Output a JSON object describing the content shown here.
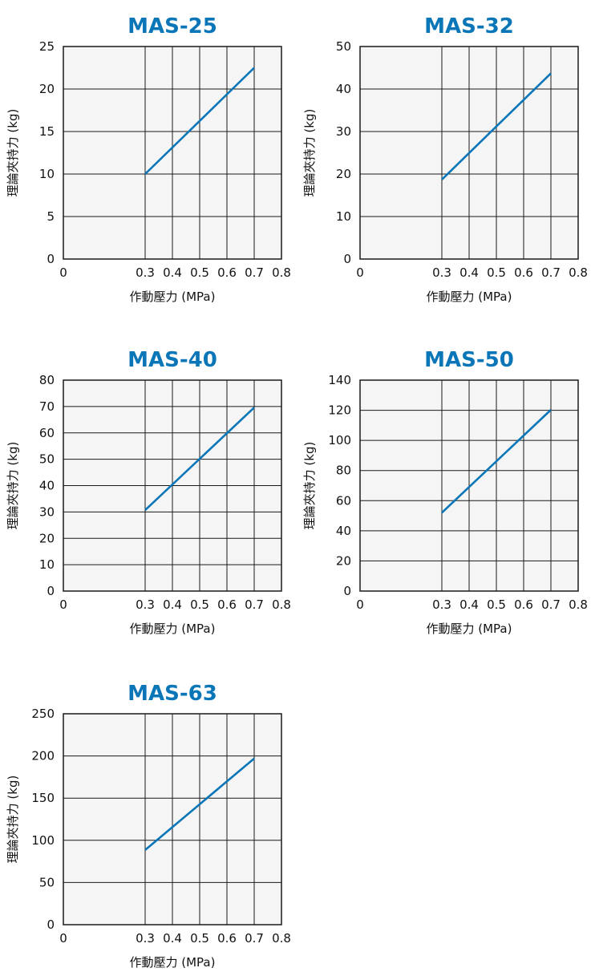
{
  "colors": {
    "line": "#0a76b8",
    "title": "#0a76b8",
    "plot_bg": "#f5f5f5",
    "grid": "#1a1a1a"
  },
  "chart_data": [
    {
      "type": "line",
      "title": "MAS-25",
      "xlabel": "作動壓力 (MPa)",
      "ylabel": "理論夾持力 (kg)",
      "xlim": [
        0,
        0.8
      ],
      "ylim": [
        0,
        25
      ],
      "xticks": [
        "0",
        "0.3",
        "0.4",
        "0.5",
        "0.6",
        "0.7",
        "0.8"
      ],
      "yticks": [
        "0",
        "5",
        "10",
        "15",
        "20",
        "25"
      ],
      "grid": true,
      "series": [
        {
          "x": [
            0.3,
            0.7
          ],
          "y": [
            10,
            22.5
          ]
        }
      ]
    },
    {
      "type": "line",
      "title": "MAS-32",
      "xlabel": "作動壓力 (MPa)",
      "ylabel": "理論夾持力 (kg)",
      "xlim": [
        0,
        0.8
      ],
      "ylim": [
        0,
        50
      ],
      "xticks": [
        "0",
        "0.3",
        "0.4",
        "0.5",
        "0.6",
        "0.7",
        "0.8"
      ],
      "yticks": [
        "0",
        "10",
        "20",
        "30",
        "40",
        "50"
      ],
      "grid": true,
      "series": [
        {
          "x": [
            0.3,
            0.7
          ],
          "y": [
            18.7,
            43.7
          ]
        }
      ]
    },
    {
      "type": "line",
      "title": "MAS-40",
      "xlabel": "作動壓力 (MPa)",
      "ylabel": "理論夾持力 (kg)",
      "xlim": [
        0,
        0.8
      ],
      "ylim": [
        0,
        80
      ],
      "xticks": [
        "0",
        "0.3",
        "0.4",
        "0.5",
        "0.6",
        "0.7",
        "0.8"
      ],
      "yticks": [
        "0",
        "10",
        "20",
        "30",
        "40",
        "50",
        "60",
        "70",
        "80"
      ],
      "grid": true,
      "series": [
        {
          "x": [
            0.3,
            0.7
          ],
          "y": [
            30.7,
            69.6
          ]
        }
      ]
    },
    {
      "type": "line",
      "title": "MAS-50",
      "xlabel": "作動壓力 (MPa)",
      "ylabel": "理論夾持力 (kg)",
      "xlim": [
        0,
        0.8
      ],
      "ylim": [
        0,
        140
      ],
      "xticks": [
        "0",
        "0.3",
        "0.4",
        "0.5",
        "0.6",
        "0.7",
        "0.8"
      ],
      "yticks": [
        "0",
        "20",
        "40",
        "60",
        "80",
        "100",
        "120",
        "140"
      ],
      "grid": true,
      "series": [
        {
          "x": [
            0.3,
            0.7
          ],
          "y": [
            52,
            120.3
          ]
        }
      ]
    },
    {
      "type": "line",
      "title": "MAS-63",
      "xlabel": "作動壓力 (MPa)",
      "ylabel": "理論夾持力 (kg)",
      "xlim": [
        0,
        0.8
      ],
      "ylim": [
        0,
        250
      ],
      "xticks": [
        "0",
        "0.3",
        "0.4",
        "0.5",
        "0.6",
        "0.7",
        "0.8"
      ],
      "yticks": [
        "0",
        "50",
        "100",
        "150",
        "200",
        "250"
      ],
      "grid": true,
      "series": [
        {
          "x": [
            0.3,
            0.7
          ],
          "y": [
            88.5,
            197
          ]
        }
      ]
    }
  ]
}
